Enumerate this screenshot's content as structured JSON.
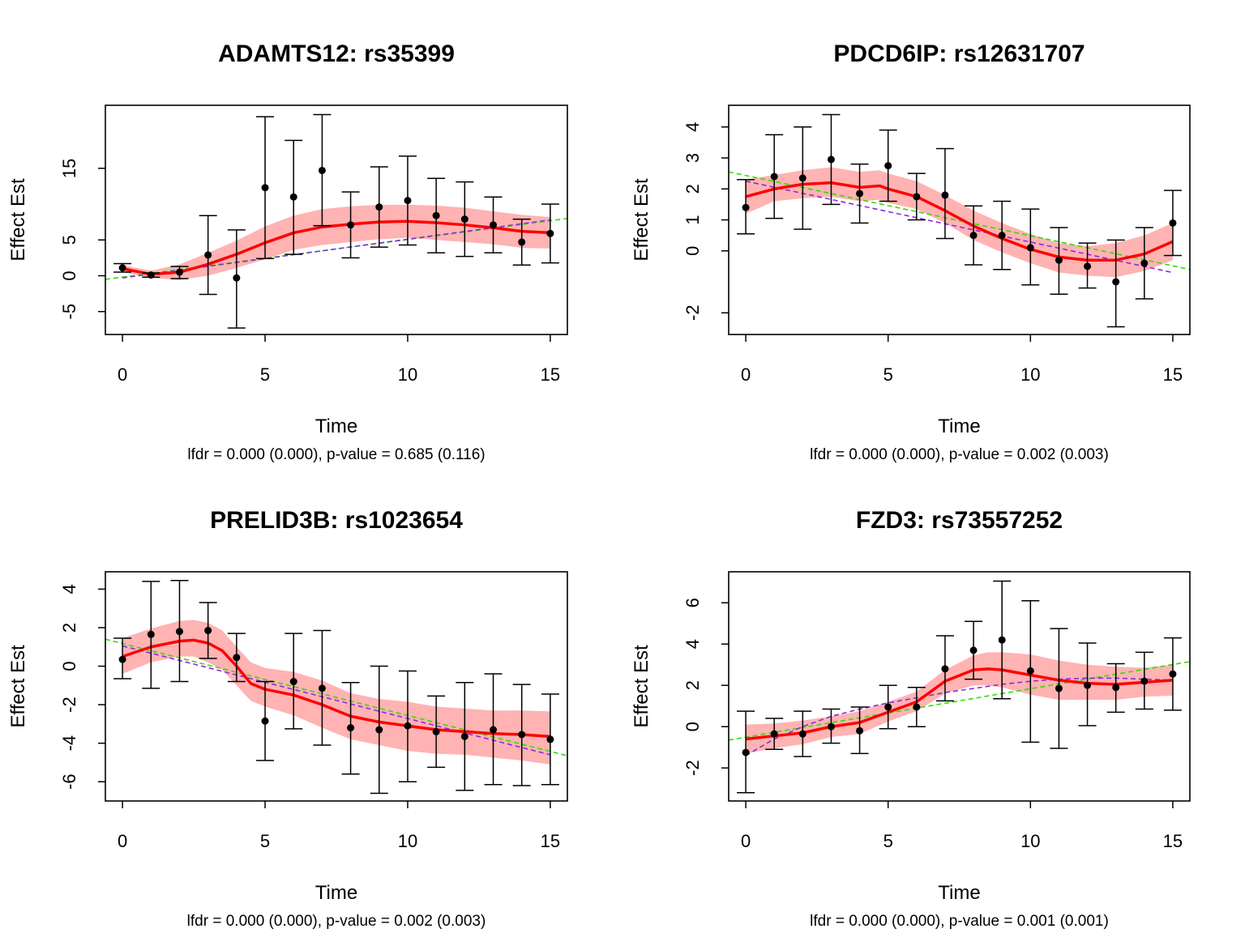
{
  "chart_data": [
    {
      "type": "scatter",
      "title": "ADAMTS12: rs35399",
      "xlabel": "Time",
      "ylabel": "Effect Est",
      "subtitle": "lfdr = 0.000 (0.000), p-value = 0.685 (0.116)",
      "xlim": [
        -0.6,
        15.6
      ],
      "ylim": [
        -8.2,
        23.8
      ],
      "xticks": [
        0,
        5,
        10,
        15
      ],
      "yticks": [
        -5,
        0,
        5,
        15
      ],
      "x": [
        0,
        1,
        2,
        3,
        4,
        5,
        6,
        7,
        8,
        9,
        10,
        11,
        12,
        13,
        14,
        15
      ],
      "points": [
        1.1,
        0.1,
        0.5,
        2.9,
        -0.3,
        12.3,
        11.0,
        14.7,
        7.1,
        9.6,
        10.5,
        8.4,
        7.9,
        7.1,
        4.7,
        5.9
      ],
      "err_lower": [
        0.5,
        -0.2,
        -0.4,
        -2.6,
        -7.3,
        2.4,
        3.0,
        7.0,
        2.5,
        4.0,
        4.3,
        3.2,
        2.7,
        3.2,
        1.5,
        1.8
      ],
      "err_upper": [
        1.7,
        0.4,
        1.3,
        8.4,
        6.4,
        22.2,
        18.9,
        22.5,
        11.7,
        15.2,
        16.7,
        13.6,
        13.1,
        11.0,
        7.9,
        10.0
      ],
      "smooth_x": [
        0,
        1,
        2,
        3,
        4,
        5,
        6,
        7,
        8,
        9,
        10,
        11,
        12,
        13,
        14,
        15
      ],
      "smooth": [
        1.0,
        0.2,
        0.5,
        1.6,
        3.0,
        4.6,
        6.0,
        6.8,
        7.2,
        7.5,
        7.6,
        7.4,
        7.1,
        6.7,
        6.2,
        6.0
      ],
      "band_lower": [
        0.5,
        -0.3,
        -0.6,
        0.0,
        1.1,
        2.3,
        3.6,
        4.3,
        4.7,
        5.1,
        5.3,
        5.0,
        4.7,
        4.4,
        3.9,
        3.8
      ],
      "band_upper": [
        1.5,
        0.7,
        1.6,
        3.2,
        4.9,
        6.9,
        8.4,
        9.3,
        9.7,
        9.9,
        9.9,
        9.8,
        9.5,
        9.0,
        8.5,
        8.2
      ],
      "purple_line": [
        [
          0,
          -0.3
        ],
        [
          15,
          7.8
        ]
      ],
      "green_line": [
        [
          -0.6,
          -0.5
        ],
        [
          15.6,
          8.0
        ]
      ]
    },
    {
      "type": "scatter",
      "title": "PDCD6IP: rs12631707",
      "xlabel": "Time",
      "ylabel": "Effect Est",
      "subtitle": "lfdr = 0.000 (0.000), p-value = 0.002 (0.003)",
      "xlim": [
        -0.6,
        15.6
      ],
      "ylim": [
        -2.7,
        4.7
      ],
      "xticks": [
        0,
        5,
        10,
        15
      ],
      "yticks": [
        -2,
        0,
        1,
        2,
        3,
        4
      ],
      "x": [
        0,
        1,
        2,
        3,
        4,
        5,
        6,
        7,
        8,
        9,
        10,
        11,
        12,
        13,
        14,
        15
      ],
      "points": [
        1.4,
        2.4,
        2.35,
        2.95,
        1.85,
        2.75,
        1.75,
        1.8,
        0.5,
        0.5,
        0.1,
        -0.3,
        -0.5,
        -1.0,
        -0.4,
        0.9
      ],
      "err_lower": [
        0.55,
        1.05,
        0.7,
        1.5,
        0.9,
        1.6,
        1.0,
        0.4,
        -0.45,
        -0.6,
        -1.1,
        -1.4,
        -1.2,
        -2.45,
        -1.55,
        -0.15
      ],
      "err_upper": [
        2.3,
        3.75,
        4.0,
        4.4,
        2.8,
        3.9,
        2.5,
        3.3,
        1.45,
        1.6,
        1.35,
        0.75,
        0.25,
        0.35,
        0.75,
        1.95
      ],
      "smooth_x": [
        0,
        1,
        2,
        3,
        4,
        4.7,
        5,
        6,
        7,
        8,
        9,
        10,
        11,
        12,
        13,
        14,
        15
      ],
      "smooth": [
        1.75,
        2.0,
        2.15,
        2.2,
        2.05,
        2.1,
        2.0,
        1.75,
        1.3,
        0.8,
        0.4,
        0.05,
        -0.2,
        -0.3,
        -0.3,
        -0.1,
        0.3
      ],
      "band_lower": [
        1.2,
        1.6,
        1.7,
        1.75,
        1.6,
        1.65,
        1.55,
        1.35,
        0.9,
        0.35,
        -0.05,
        -0.4,
        -0.7,
        -0.8,
        -0.85,
        -0.65,
        -0.3
      ],
      "band_upper": [
        2.3,
        2.45,
        2.6,
        2.7,
        2.55,
        2.6,
        2.5,
        2.25,
        1.8,
        1.3,
        0.9,
        0.55,
        0.25,
        0.15,
        0.25,
        0.5,
        0.9
      ],
      "purple_line": [
        [
          0,
          2.25
        ],
        [
          15,
          -0.7
        ]
      ],
      "green_line": [
        [
          -0.6,
          2.55
        ],
        [
          15.6,
          -0.6
        ]
      ]
    },
    {
      "type": "scatter",
      "title": "PRELID3B: rs1023654",
      "xlabel": "Time",
      "ylabel": "Effect Est",
      "subtitle": "lfdr = 0.000 (0.000), p-value = 0.002 (0.003)",
      "xlim": [
        -0.6,
        15.6
      ],
      "ylim": [
        -7.0,
        4.9
      ],
      "xticks": [
        0,
        5,
        10,
        15
      ],
      "yticks": [
        -6,
        -4,
        -2,
        0,
        2,
        4
      ],
      "x": [
        0,
        1,
        2,
        3,
        4,
        5,
        6,
        7,
        8,
        9,
        10,
        11,
        12,
        13,
        14,
        15
      ],
      "points": [
        0.35,
        1.65,
        1.8,
        1.85,
        0.45,
        -2.85,
        -0.8,
        -1.15,
        -3.2,
        -3.3,
        -3.1,
        -3.4,
        -3.65,
        -3.3,
        -3.55,
        -3.8
      ],
      "err_lower": [
        -0.65,
        -1.15,
        -0.8,
        0.4,
        -0.8,
        -4.9,
        -3.25,
        -4.1,
        -5.6,
        -6.6,
        -6.0,
        -5.25,
        -6.45,
        -6.15,
        -6.2,
        -6.15
      ],
      "err_upper": [
        1.45,
        4.4,
        4.45,
        3.3,
        1.7,
        -0.8,
        1.7,
        1.85,
        -0.85,
        0.0,
        -0.25,
        -1.55,
        -0.85,
        -0.4,
        -0.95,
        -1.45
      ],
      "smooth_x": [
        0,
        1,
        2,
        2.5,
        3,
        3.5,
        4,
        4.5,
        5,
        6,
        7,
        8,
        9,
        10,
        11,
        12,
        13,
        14,
        15
      ],
      "smooth": [
        0.5,
        1.0,
        1.3,
        1.35,
        1.2,
        0.8,
        0.0,
        -0.9,
        -1.2,
        -1.5,
        -2.0,
        -2.6,
        -2.9,
        -3.1,
        -3.3,
        -3.4,
        -3.5,
        -3.55,
        -3.65
      ],
      "band_lower": [
        -0.4,
        0.2,
        0.5,
        0.5,
        0.2,
        -0.2,
        -1.0,
        -1.8,
        -2.1,
        -2.55,
        -3.2,
        -3.8,
        -4.1,
        -4.4,
        -4.55,
        -4.6,
        -4.75,
        -4.9,
        -5.1
      ],
      "band_upper": [
        1.45,
        1.95,
        2.35,
        2.4,
        2.25,
        1.85,
        1.0,
        0.2,
        -0.1,
        -0.3,
        -0.75,
        -1.4,
        -1.7,
        -1.85,
        -2.1,
        -2.2,
        -2.3,
        -2.3,
        -2.35
      ],
      "purple_line": [
        [
          0,
          1.05
        ],
        [
          15,
          -4.6
        ]
      ],
      "green_line": [
        [
          -0.6,
          1.4
        ],
        [
          15.6,
          -4.65
        ]
      ]
    },
    {
      "type": "scatter",
      "title": "FZD3: rs73557252",
      "xlabel": "Time",
      "ylabel": "Effect Est",
      "subtitle": "lfdr = 0.000 (0.000), p-value = 0.001 (0.001)",
      "xlim": [
        -0.6,
        15.6
      ],
      "ylim": [
        -3.6,
        7.5
      ],
      "xticks": [
        0,
        5,
        10,
        15
      ],
      "yticks": [
        -2,
        0,
        2,
        4,
        6
      ],
      "x": [
        0,
        1,
        2,
        3,
        4,
        5,
        6,
        7,
        8,
        9,
        10,
        11,
        12,
        13,
        14,
        15
      ],
      "points": [
        -1.25,
        -0.35,
        -0.35,
        0.0,
        -0.2,
        0.95,
        0.95,
        2.8,
        3.7,
        4.2,
        2.7,
        1.85,
        2.0,
        1.9,
        2.2,
        2.55
      ],
      "err_lower": [
        -3.2,
        -1.1,
        -1.45,
        -0.8,
        -1.3,
        -0.1,
        0.0,
        1.25,
        2.3,
        1.35,
        -0.75,
        -1.05,
        0.05,
        0.7,
        0.85,
        0.8
      ],
      "err_upper": [
        0.75,
        0.4,
        0.75,
        0.85,
        0.95,
        2.0,
        1.9,
        4.4,
        5.1,
        7.05,
        6.1,
        4.75,
        4.05,
        3.05,
        3.6,
        4.3
      ],
      "smooth_x": [
        0,
        1,
        2,
        3,
        4,
        5,
        6,
        7,
        8,
        8.5,
        9,
        10,
        11,
        12,
        13,
        14,
        15
      ],
      "smooth": [
        -0.6,
        -0.45,
        -0.3,
        0.0,
        0.2,
        0.7,
        1.2,
        2.2,
        2.75,
        2.8,
        2.75,
        2.5,
        2.25,
        2.1,
        2.05,
        2.15,
        2.25
      ],
      "band_lower": [
        -1.3,
        -1.05,
        -0.85,
        -0.5,
        -0.35,
        0.25,
        0.75,
        1.6,
        2.0,
        2.0,
        1.9,
        1.55,
        1.3,
        1.3,
        1.3,
        1.45,
        1.5
      ],
      "band_upper": [
        0.1,
        0.15,
        0.3,
        0.5,
        0.75,
        1.2,
        1.7,
        2.75,
        3.45,
        3.6,
        3.6,
        3.5,
        3.2,
        3.0,
        2.9,
        2.85,
        3.0
      ],
      "purple_line": [
        [
          0,
          -1.4
        ],
        [
          1,
          -0.6
        ],
        [
          2,
          0.0
        ],
        [
          3,
          0.5
        ],
        [
          4,
          0.85
        ],
        [
          5,
          1.15
        ],
        [
          6,
          1.4
        ],
        [
          7,
          1.65
        ],
        [
          8,
          1.85
        ],
        [
          9,
          2.05
        ],
        [
          10,
          2.2
        ],
        [
          11,
          2.3
        ],
        [
          12,
          2.35
        ],
        [
          13,
          2.35
        ],
        [
          14,
          2.3
        ],
        [
          15,
          2.25
        ]
      ],
      "green_line": [
        [
          -0.6,
          -0.65
        ],
        [
          15.6,
          3.15
        ]
      ]
    }
  ],
  "colors": {
    "smooth": "#ff0000",
    "band": "#ffb3b3",
    "purple_dashed": "#8a2be2",
    "green_dashed": "#33dd00",
    "points": "#000000"
  }
}
